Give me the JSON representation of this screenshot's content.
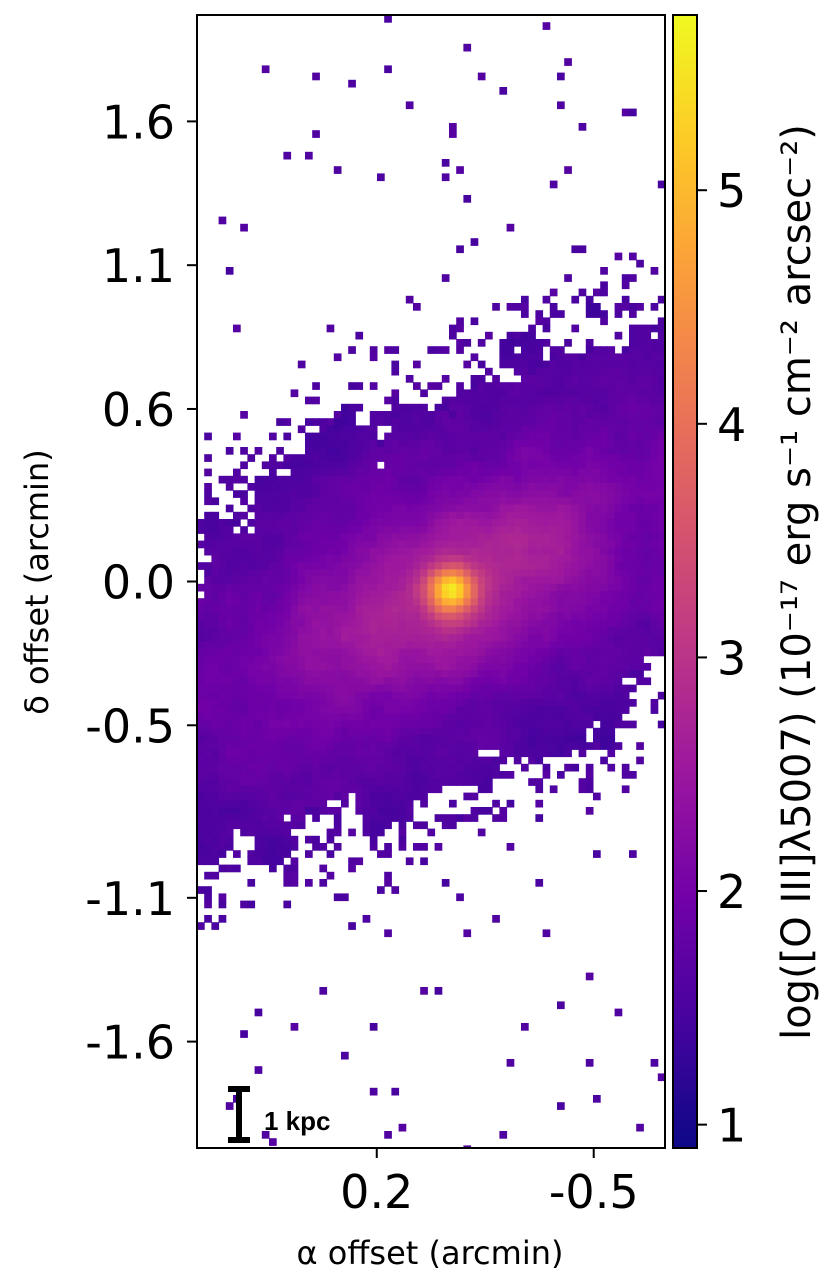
{
  "chart_data": {
    "type": "heatmap",
    "title": "",
    "xlabel": "α offset (arcmin)",
    "ylabel": "δ offset (arcmin)",
    "colorbar_label": "log([O III]λ5007) (10⁻¹⁷ erg s⁻¹ cm⁻² arcsec⁻²)",
    "colormap": "plasma",
    "xlim": [
      0.78,
      -0.73
    ],
    "ylim": [
      -1.97,
      1.97
    ],
    "x_ticks": [
      {
        "value": 0.2,
        "label": "0.2"
      },
      {
        "value": -0.5,
        "label": "-0.5"
      }
    ],
    "y_ticks": [
      {
        "value": 1.6,
        "label": "1.6"
      },
      {
        "value": 1.1,
        "label": "1.1"
      },
      {
        "value": 0.6,
        "label": "0.6"
      },
      {
        "value": 0.0,
        "label": "0.0"
      },
      {
        "value": -0.5,
        "label": "-0.5"
      },
      {
        "value": -1.1,
        "label": "-1.1"
      },
      {
        "value": -1.6,
        "label": "-1.6"
      }
    ],
    "colorbar_range": [
      0.9,
      5.75
    ],
    "colorbar_ticks": [
      {
        "value": 1,
        "label": "1"
      },
      {
        "value": 2,
        "label": "2"
      },
      {
        "value": 3,
        "label": "3"
      },
      {
        "value": 4,
        "label": "4"
      },
      {
        "value": 5,
        "label": "5"
      }
    ],
    "colorbar_stops": [
      "#0d0887",
      "#46039f",
      "#7201a8",
      "#9c179e",
      "#bd3786",
      "#d8576b",
      "#ed7953",
      "#fb9f3a",
      "#fdca26",
      "#f0f921"
    ],
    "peak": {
      "x": -0.04,
      "y": -0.03,
      "value": 5.6
    },
    "background_level": 1.5,
    "scale_bar": {
      "label": "1 kpc"
    }
  }
}
